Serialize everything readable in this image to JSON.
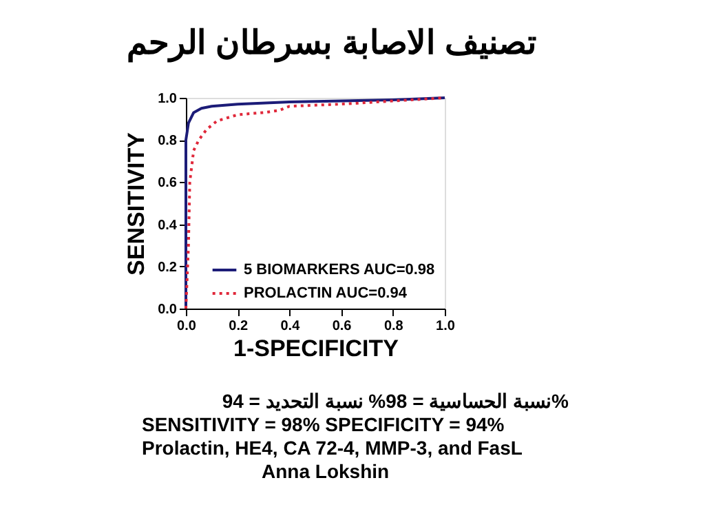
{
  "chart_data": {
    "type": "line",
    "title": "تصنيف الاصابة بسرطان الرحم",
    "xlabel": "1-SPECIFICITY",
    "ylabel": "SENSITIVITY",
    "series": [
      {
        "name": "5 BIOMARKERS AUC=0.98",
        "color": "#1c1c78",
        "line_style": "solid",
        "x": [
          0,
          0,
          0.01,
          0.03,
          0.06,
          0.1,
          0.2,
          0.4,
          0.6,
          0.8,
          1
        ],
        "values": [
          0,
          0.8,
          0.88,
          0.93,
          0.95,
          0.96,
          0.97,
          0.98,
          0.985,
          0.99,
          1
        ]
      },
      {
        "name": "PROLACTIN AUC=0.94",
        "color": "#e0283a",
        "line_style": "dotted",
        "x": [
          0,
          0.01,
          0.015,
          0.03,
          0.05,
          0.08,
          0.12,
          0.2,
          0.3,
          0.36,
          0.4,
          0.6,
          0.8,
          1
        ],
        "values": [
          0,
          0.3,
          0.6,
          0.75,
          0.8,
          0.85,
          0.89,
          0.92,
          0.93,
          0.94,
          0.96,
          0.97,
          0.985,
          1
        ]
      }
    ],
    "xlim": [
      0,
      1
    ],
    "ylim": [
      0,
      1
    ],
    "xticks": [
      {
        "value": 0,
        "label": "0.0"
      },
      {
        "value": 0.2,
        "label": "0.2"
      },
      {
        "value": 0.4,
        "label": "0.4"
      },
      {
        "value": 0.6,
        "label": "0.6"
      },
      {
        "value": 0.8,
        "label": "0.8"
      },
      {
        "value": 1,
        "label": "1.0"
      }
    ],
    "yticks": [
      {
        "value": 0,
        "label": "0.0"
      },
      {
        "value": 0.2,
        "label": "0.2"
      },
      {
        "value": 0.4,
        "label": "0.4"
      },
      {
        "value": 0.6,
        "label": "0.6"
      },
      {
        "value": 0.8,
        "label": "0.8"
      },
      {
        "value": 1,
        "label": "1.0"
      }
    ],
    "grid": false,
    "legend": "bottom right",
    "marker": "none",
    "annotations": [
      "نسبة الحساسية = 98% نسبة التحديد = 94%",
      "SENSITIVITY = 98% SPECIFICITY = 94%",
      "Prolactin, HE4, CA 72-4, MMP-3, and FasL",
      "Anna Lokshin"
    ]
  }
}
